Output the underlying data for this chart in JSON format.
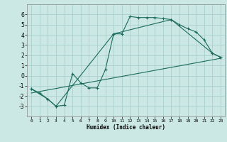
{
  "xlabel": "Humidex (Indice chaleur)",
  "ylabel": "",
  "background_color": "#cce8e4",
  "grid_color": "#aacfcc",
  "line_color": "#1a6b5c",
  "xlim": [
    -0.5,
    23.5
  ],
  "ylim": [
    -4,
    7
  ],
  "xticks": [
    0,
    1,
    2,
    3,
    4,
    5,
    6,
    7,
    8,
    9,
    10,
    11,
    12,
    13,
    14,
    15,
    16,
    17,
    18,
    19,
    20,
    21,
    22,
    23
  ],
  "yticks": [
    -3,
    -2,
    -1,
    0,
    1,
    2,
    3,
    4,
    5,
    6
  ],
  "line1_x": [
    0,
    1,
    2,
    3,
    4,
    5,
    6,
    7,
    8,
    9,
    10,
    11,
    12,
    13,
    14,
    15,
    16,
    17,
    18,
    19,
    20,
    21,
    22,
    23
  ],
  "line1_y": [
    -1.3,
    -1.7,
    -2.3,
    -3.0,
    -2.9,
    0.2,
    -0.7,
    -1.2,
    -1.2,
    0.6,
    4.1,
    4.1,
    5.8,
    5.7,
    5.7,
    5.7,
    5.6,
    5.5,
    5.0,
    4.6,
    4.3,
    3.5,
    2.2,
    1.8
  ],
  "line2_x": [
    0,
    2,
    3,
    10,
    17,
    22,
    23
  ],
  "line2_y": [
    -1.3,
    -2.3,
    -3.0,
    4.1,
    5.5,
    2.2,
    1.8
  ],
  "line3_x": [
    0,
    23
  ],
  "line3_y": [
    -1.7,
    1.7
  ]
}
